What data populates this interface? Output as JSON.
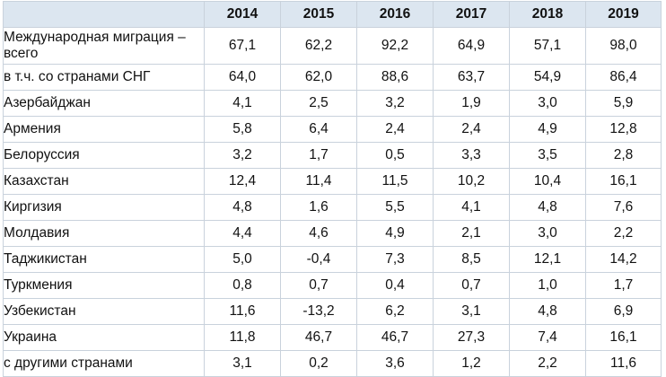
{
  "table": {
    "years": [
      "2014",
      "2015",
      "2016",
      "2017",
      "2018",
      "2019"
    ],
    "rows": [
      {
        "label": "Международная миграция – всего",
        "values": [
          "67,1",
          "62,2",
          "92,2",
          "64,9",
          "57,1",
          "98,0"
        ]
      },
      {
        "label": "в т.ч. со странами СНГ",
        "values": [
          "64,0",
          "62,0",
          "88,6",
          "63,7",
          "54,9",
          "86,4"
        ]
      },
      {
        "label": "Азербайджан",
        "values": [
          "4,1",
          "2,5",
          "3,2",
          "1,9",
          "3,0",
          "5,9"
        ]
      },
      {
        "label": "Армения",
        "values": [
          "5,8",
          "6,4",
          "2,4",
          "2,4",
          "4,9",
          "12,8"
        ]
      },
      {
        "label": "Белоруссия",
        "values": [
          "3,2",
          "1,7",
          "0,5",
          "3,3",
          "3,5",
          "2,8"
        ]
      },
      {
        "label": "Казахстан",
        "values": [
          "12,4",
          "11,4",
          "11,5",
          "10,2",
          "10,4",
          "16,1"
        ]
      },
      {
        "label": "Киргизия",
        "values": [
          "4,8",
          "1,6",
          "5,5",
          "4,1",
          "4,8",
          "7,6"
        ]
      },
      {
        "label": "Молдавия",
        "values": [
          "4,4",
          "4,6",
          "4,9",
          "2,1",
          "3,0",
          "2,2"
        ]
      },
      {
        "label": "Таджикистан",
        "values": [
          "5,0",
          "-0,4",
          "7,3",
          "8,5",
          "12,1",
          "14,2"
        ]
      },
      {
        "label": "Туркмения",
        "values": [
          "0,8",
          "0,7",
          "0,4",
          "0,7",
          "1,0",
          "1,7"
        ]
      },
      {
        "label": "Узбекистан",
        "values": [
          "11,6",
          "-13,2",
          "6,2",
          "3,1",
          "4,8",
          "6,9"
        ]
      },
      {
        "label": "Украина",
        "values": [
          "11,8",
          "46,7",
          "46,7",
          "27,3",
          "7,4",
          "16,1"
        ]
      },
      {
        "label": "с другими странами",
        "values": [
          "3,1",
          "0,2",
          "3,6",
          "1,2",
          "2,2",
          "11,6"
        ]
      }
    ]
  }
}
